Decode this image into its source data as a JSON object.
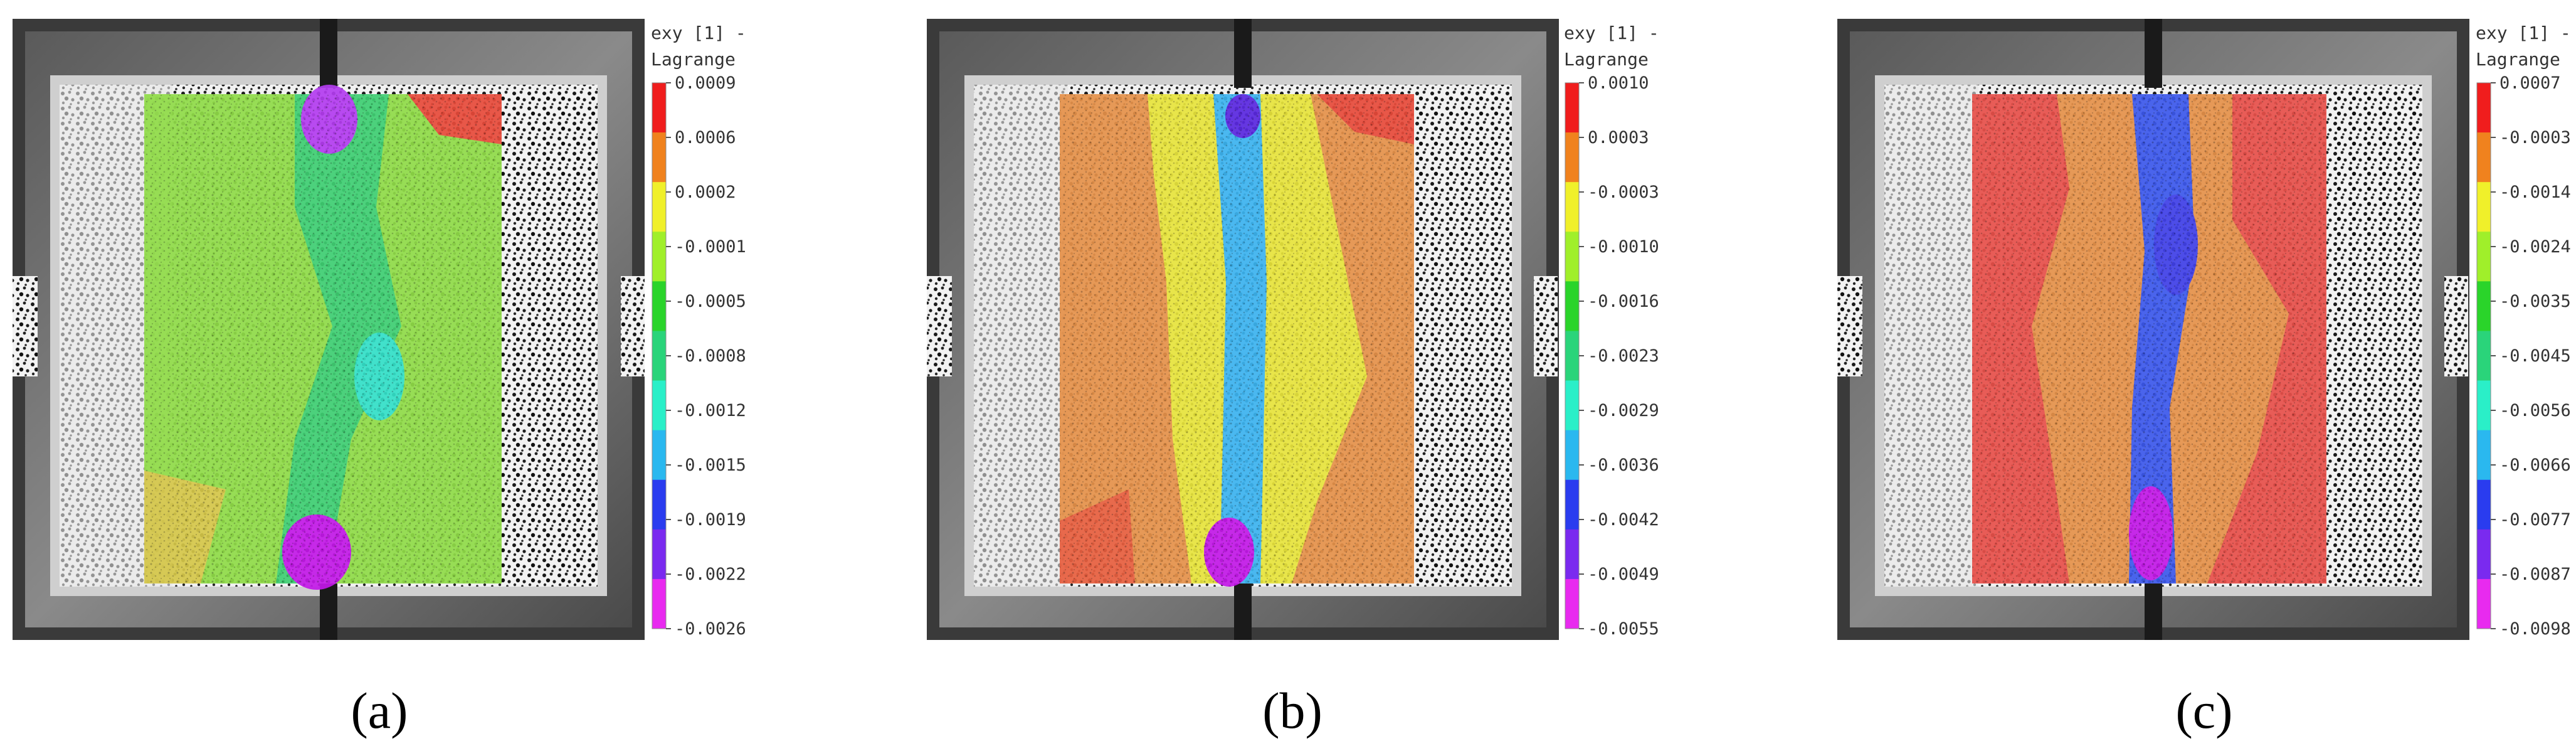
{
  "panels": [
    {
      "caption": "(a)",
      "legend": {
        "title_line1": "exy [1] -",
        "title_line2": "Lagrange",
        "ticks": [
          "0.0009",
          "0.0006",
          "0.0002",
          "-0.0001",
          "-0.0005",
          "-0.0008",
          "-0.0012",
          "-0.0015",
          "-0.0019",
          "-0.0022",
          "-0.0026"
        ]
      },
      "field": {
        "background": "#90dc48",
        "band_color": "#3fcf72",
        "band_core": "#33e0c8",
        "hotspot_top": "#b43cf0",
        "hotspot_bottom": "#c318e8",
        "corner": "#e84a3a"
      }
    },
    {
      "caption": "(b)",
      "legend": {
        "title_line1": "exy [1] -",
        "title_line2": "Lagrange",
        "ticks": [
          "0.0010",
          "0.0003",
          "-0.0003",
          "-0.0010",
          "-0.0016",
          "-0.0023",
          "-0.0029",
          "-0.0036",
          "-0.0042",
          "-0.0049",
          "-0.0055"
        ]
      },
      "field": {
        "background": "#e6924a",
        "band_color": "#e8e43c",
        "band_core": "#3cb4f0",
        "hotspot_top": "#5a28e0",
        "hotspot_bottom": "#c318e8",
        "corner": "#e84a3a"
      }
    },
    {
      "caption": "(c)",
      "legend": {
        "title_line1": "exy [1] -",
        "title_line2": "Lagrange",
        "ticks": [
          "0.0007",
          "-0.0003",
          "-0.0014",
          "-0.0024",
          "-0.0035",
          "-0.0045",
          "-0.0056",
          "-0.0066",
          "-0.0077",
          "-0.0087",
          "-0.0098"
        ]
      },
      "field": {
        "background": "#e8504a",
        "band_color": "#e6924a",
        "band_core": "#3c58ec",
        "hotspot_top": "#4040e8",
        "hotspot_bottom": "#c318e8",
        "corner": "#e84a3a"
      }
    }
  ],
  "colorbar_colors": [
    "#f01d1d",
    "#f0821e",
    "#f0f02a",
    "#a0ef2a",
    "#2ad42a",
    "#2ad47a",
    "#2aefc8",
    "#2ab8ef",
    "#2a3cef",
    "#7a2aef",
    "#e82aef"
  ]
}
